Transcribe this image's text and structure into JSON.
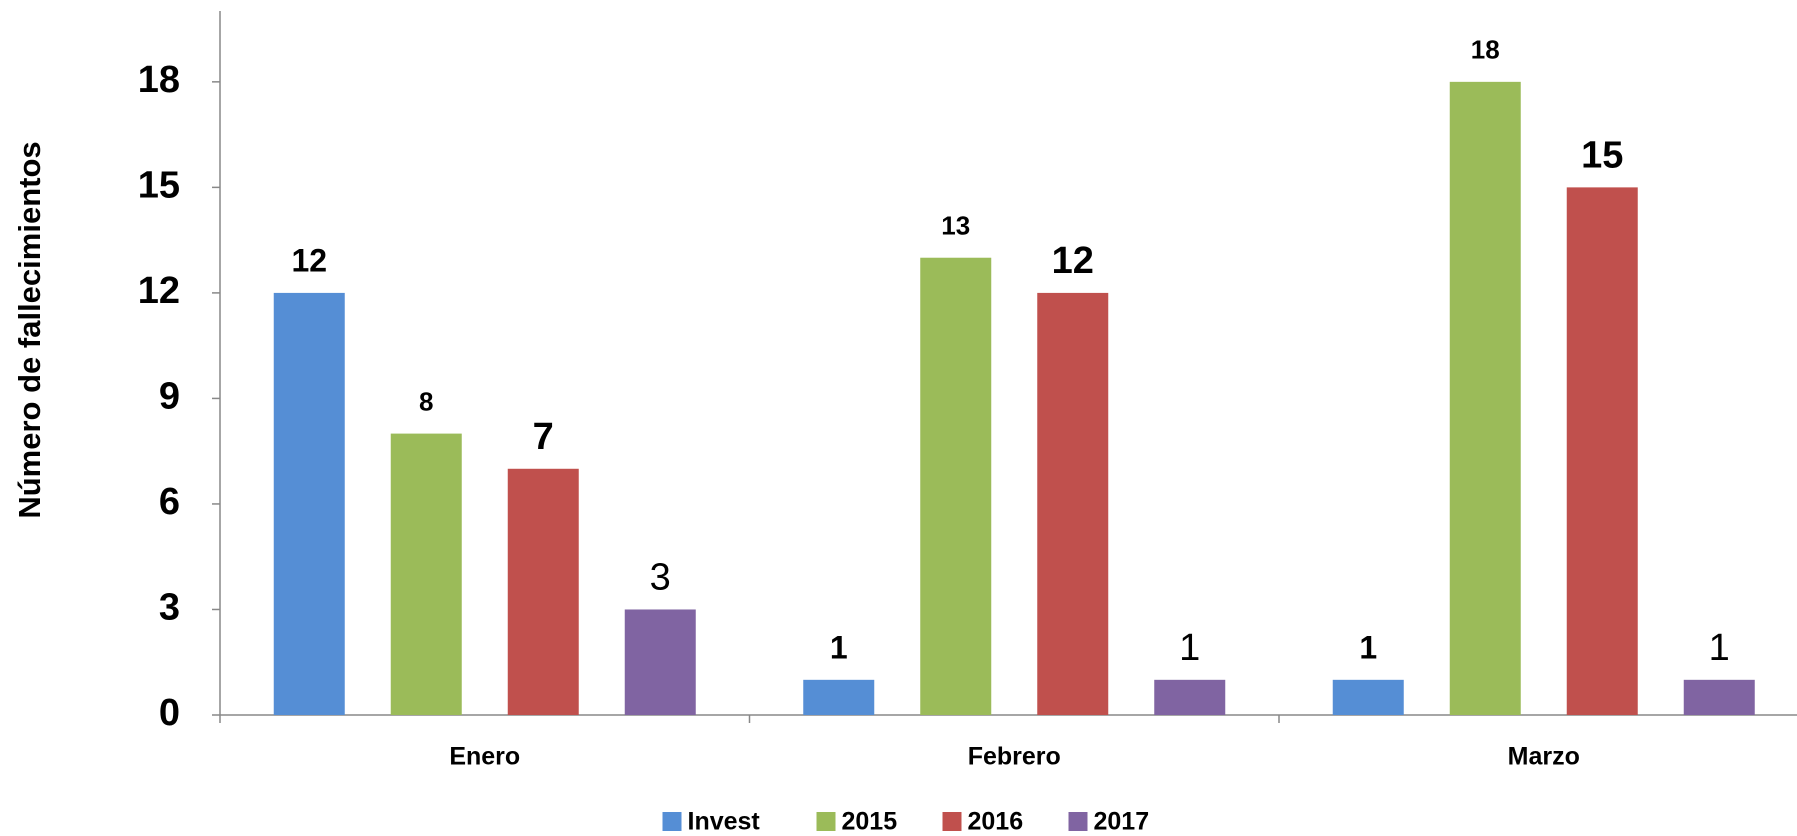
{
  "chart_data": {
    "type": "bar",
    "y_label": "Número de fallecimientos",
    "categories": [
      "Enero",
      "Febrero",
      "Marzo"
    ],
    "series": [
      {
        "name": "Invest",
        "color": "#558ED5",
        "values": [
          12,
          1,
          1
        ]
      },
      {
        "name": "2015",
        "color": "#9BBB59",
        "values": [
          8,
          13,
          18
        ]
      },
      {
        "name": "2016",
        "color": "#C0504D",
        "values": [
          7,
          12,
          15
        ]
      },
      {
        "name": "2017",
        "color": "#8064A2",
        "values": [
          3,
          1,
          1
        ]
      }
    ],
    "ylim": [
      0,
      20
    ],
    "yticks": [
      0,
      3,
      6,
      9,
      12,
      15,
      18
    ],
    "grid": false,
    "legend": "bottom"
  }
}
